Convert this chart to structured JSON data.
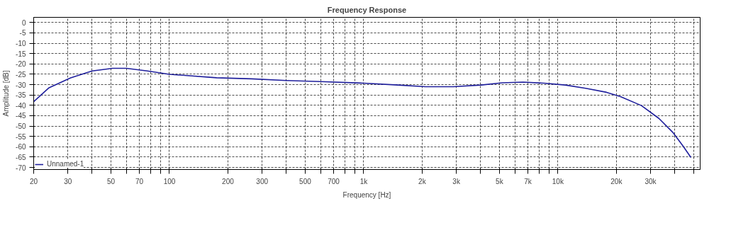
{
  "chart_data": {
    "type": "line",
    "title": "Frequency Response",
    "xlabel": "Frequency [Hz]",
    "ylabel": "Amplitude [dB]",
    "log": "x",
    "grid": true,
    "legend": "bottom left",
    "line_style": "solid",
    "marker": "none",
    "xlim": [
      20,
      54000
    ],
    "ylim": [
      -71,
      2.5
    ],
    "xticks": [
      20,
      30,
      {
        "value": 40,
        "label": null
      },
      50,
      {
        "value": 60,
        "label": null
      },
      70,
      {
        "value": 80,
        "label": null
      },
      {
        "value": 90,
        "label": null
      },
      100,
      200,
      300,
      {
        "value": 400,
        "label": null
      },
      500,
      {
        "value": 600,
        "label": null
      },
      700,
      {
        "value": 800,
        "label": null
      },
      {
        "value": 900,
        "label": null
      },
      {
        "value": 1000,
        "label": "1k"
      },
      {
        "value": 2000,
        "label": "2k"
      },
      {
        "value": 3000,
        "label": "3k"
      },
      {
        "value": 4000,
        "label": null
      },
      {
        "value": 5000,
        "label": "5k"
      },
      {
        "value": 6000,
        "label": null
      },
      {
        "value": 7000,
        "label": "7k"
      },
      {
        "value": 8000,
        "label": null
      },
      {
        "value": 9000,
        "label": null
      },
      {
        "value": 10000,
        "label": "10k"
      },
      {
        "value": 20000,
        "label": "20k"
      },
      {
        "value": 30000,
        "label": "30k"
      },
      {
        "value": 40000,
        "label": null
      },
      {
        "value": 50000,
        "label": null
      }
    ],
    "yticks": [
      0,
      -5,
      -10,
      -15,
      -20,
      -25,
      -30,
      -35,
      -40,
      -45,
      -50,
      -55,
      -60,
      -65,
      -70
    ],
    "series": [
      {
        "name": "Unnamed-1",
        "color": "#1f1f9c",
        "x": [
          20,
          24,
          31,
          40,
          51,
          60,
          77,
          100,
          175,
          265,
          400,
          600,
          1000,
          1500,
          2080,
          2900,
          4030,
          5170,
          6620,
          8480,
          10900,
          13900,
          17800,
          21000,
          26900,
          33100,
          39000,
          44200,
          48400
        ],
        "values": [
          -38.2,
          -31.5,
          -26.7,
          -23.4,
          -22.1,
          -22.1,
          -23.4,
          -25,
          -26.7,
          -27.2,
          -28,
          -28.5,
          -29.3,
          -30.2,
          -31,
          -31,
          -30.2,
          -29.1,
          -28.8,
          -29.3,
          -30.2,
          -31.8,
          -33.7,
          -35.8,
          -40.1,
          -46.3,
          -53,
          -59.8,
          -65.2
        ]
      }
    ]
  }
}
